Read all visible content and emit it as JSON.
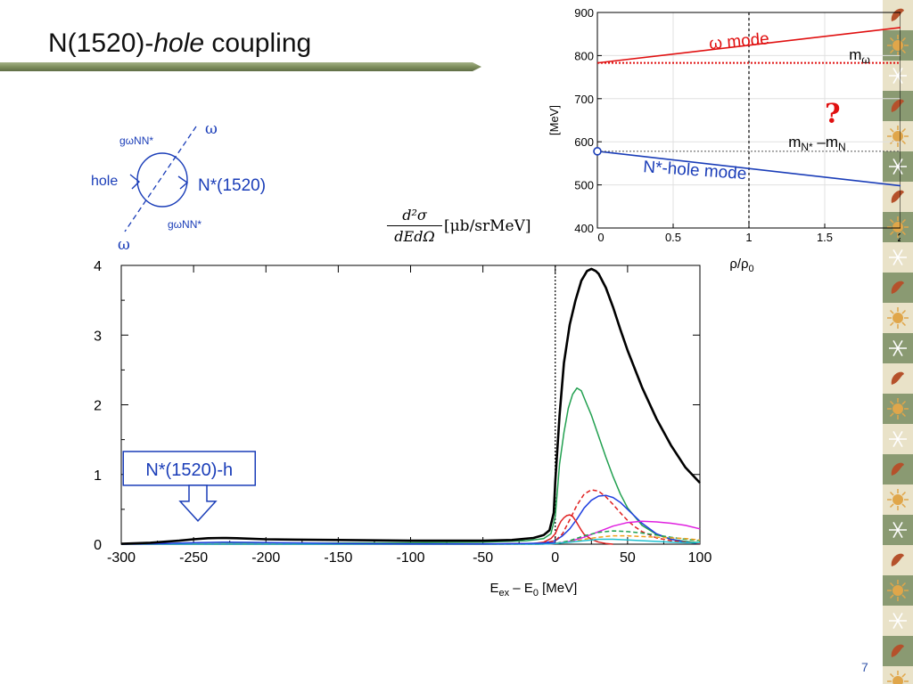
{
  "slide": {
    "title_prefix": "N(1520)-",
    "title_italic": "hole",
    "title_suffix": " coupling",
    "page_number": "7"
  },
  "colors": {
    "title_bar": "#7f8f5f",
    "title_bar_dark": "#5f6d45",
    "blue_label": "#1a3db8",
    "red_label": "#e01010",
    "sidebar_green": "#8a9a72",
    "sidebar_light": "#e9e2c8",
    "sidebar_red": "#b5512b",
    "sidebar_orange": "#e0a64a"
  },
  "feynman": {
    "label_omega_top": "ω",
    "label_omega_bottom": "ω",
    "label_coupling_top": "gωNN*",
    "label_coupling_bottom": "gωNN*",
    "label_hole": "hole",
    "label_nstar": "N*(1520)"
  },
  "formula": {
    "numerator": "d²σ",
    "denominator": "dEdΩ",
    "unit": "[μb/srMeV]"
  },
  "chart_data": [
    {
      "type": "line",
      "ylabel": "[MeV]",
      "xlabel": "ρ/ρ0",
      "xlim": [
        0,
        2
      ],
      "ylim": [
        400,
        900
      ],
      "x_ticks": [
        0,
        0.5,
        1,
        1.5,
        2
      ],
      "x_tick_labels": [
        "0",
        "0.5",
        "1",
        "1.5",
        "2"
      ],
      "y_ticks": [
        400,
        500,
        600,
        700,
        800,
        900
      ],
      "y_tick_labels": [
        "400",
        "500",
        "600",
        "700",
        "800",
        "900"
      ],
      "grid": true,
      "series": [
        {
          "name": "ω mode",
          "x": [
            0,
            2
          ],
          "y": [
            783,
            865
          ],
          "color": "#e01010",
          "style": "solid"
        },
        {
          "name": "mω",
          "x": [
            0,
            2
          ],
          "y": [
            783,
            783
          ],
          "color": "#e01010",
          "style": "dotted"
        },
        {
          "name": "N*-hole mode",
          "x": [
            0,
            2
          ],
          "y": [
            578,
            498
          ],
          "color": "#1a3db8",
          "style": "solid"
        },
        {
          "name": "mN* – mN",
          "x": [
            0,
            2
          ],
          "y": [
            578,
            578
          ],
          "color": "#555555",
          "style": "dotted"
        }
      ],
      "vline_x": 1,
      "marker": {
        "x": 0,
        "y": 578
      },
      "annotations": {
        "omega_mode": "ω mode",
        "m_omega_base": "m",
        "m_omega_sub": "ω",
        "question": "?",
        "mn_part1": "m",
        "mn_sub1": "N*",
        "mn_part2": " –m",
        "mn_sub2": "N",
        "nhole_mode": "N*-hole mode"
      },
      "xlabel_rho": "ρ/ρ",
      "xlabel_sub": "0"
    },
    {
      "type": "line",
      "xlabel": "Eex – E0 [MeV]",
      "xlabel_base": "E",
      "xlabel_sub1": "ex",
      "xlabel_mid": " – E",
      "xlabel_sub2": "0",
      "xlabel_unit": " [MeV]",
      "xlim": [
        -300,
        100
      ],
      "ylim": [
        0,
        4
      ],
      "x_ticks": [
        -300,
        -250,
        -200,
        -150,
        -100,
        -50,
        0,
        50,
        100
      ],
      "x_tick_labels": [
        "-300",
        "-250",
        "-200",
        "-150",
        "-100",
        "-50",
        "0",
        "50",
        "100"
      ],
      "y_ticks": [
        0,
        1,
        2,
        3,
        4
      ],
      "y_tick_labels": [
        "0",
        "1",
        "2",
        "3",
        "4"
      ],
      "grid": false,
      "vline_x": 0,
      "callout": "N*(1520)-h",
      "series": [
        {
          "color": "#000000",
          "width": 2.6,
          "dash": "",
          "x": [
            -300,
            -280,
            -260,
            -250,
            -240,
            -230,
            -220,
            -200,
            -180,
            -150,
            -100,
            -50,
            -30,
            -15,
            -8,
            -4,
            -1,
            0,
            3,
            6,
            10,
            14,
            18,
            22,
            25,
            28,
            30,
            35,
            40,
            45,
            50,
            60,
            70,
            80,
            90,
            100
          ],
          "y": [
            0.005,
            0.02,
            0.05,
            0.07,
            0.085,
            0.09,
            0.085,
            0.07,
            0.065,
            0.06,
            0.05,
            0.05,
            0.06,
            0.09,
            0.13,
            0.2,
            0.45,
            0.9,
            1.85,
            2.6,
            3.15,
            3.5,
            3.78,
            3.92,
            3.95,
            3.92,
            3.88,
            3.68,
            3.4,
            3.08,
            2.78,
            2.25,
            1.8,
            1.42,
            1.1,
            0.88
          ]
        },
        {
          "color": "#22a050",
          "width": 1.5,
          "dash": "",
          "x": [
            -300,
            -200,
            -100,
            -50,
            -20,
            -8,
            -3,
            0,
            3,
            6,
            9,
            12,
            15,
            18,
            21,
            25,
            30,
            35,
            40,
            45,
            50,
            60,
            70,
            80,
            90,
            100
          ],
          "y": [
            0,
            0.01,
            0.02,
            0.03,
            0.05,
            0.08,
            0.15,
            0.4,
            1.15,
            1.6,
            1.95,
            2.15,
            2.24,
            2.2,
            2.05,
            1.85,
            1.55,
            1.25,
            0.97,
            0.72,
            0.52,
            0.27,
            0.14,
            0.07,
            0.04,
            0.02
          ]
        },
        {
          "color": "#2040e0",
          "width": 1.5,
          "dash": "",
          "x": [
            -300,
            -50,
            -10,
            0,
            5,
            10,
            15,
            20,
            25,
            30,
            35,
            40,
            45,
            50,
            55,
            60,
            70,
            80,
            90,
            100
          ],
          "y": [
            0,
            0,
            0.01,
            0.05,
            0.12,
            0.22,
            0.36,
            0.52,
            0.63,
            0.69,
            0.7,
            0.67,
            0.6,
            0.5,
            0.4,
            0.3,
            0.15,
            0.07,
            0.03,
            0.01
          ]
        },
        {
          "color": "#e02020",
          "width": 1.5,
          "dash": "",
          "x": [
            -300,
            -50,
            -15,
            -8,
            -3,
            0,
            2,
            4,
            6,
            8,
            10,
            12,
            14,
            16,
            18,
            20,
            25,
            30,
            35,
            40
          ],
          "y": [
            0,
            0,
            0.01,
            0.03,
            0.08,
            0.15,
            0.25,
            0.33,
            0.38,
            0.41,
            0.42,
            0.4,
            0.34,
            0.27,
            0.2,
            0.14,
            0.07,
            0.03,
            0.01,
            0
          ]
        },
        {
          "color": "#e02020",
          "width": 1.5,
          "dash": "5,3",
          "x": [
            -300,
            -50,
            -10,
            0,
            5,
            10,
            15,
            20,
            25,
            30,
            35,
            40,
            45,
            50,
            55,
            60,
            70,
            80,
            90,
            100
          ],
          "y": [
            0,
            0,
            0.01,
            0.05,
            0.15,
            0.35,
            0.56,
            0.72,
            0.78,
            0.76,
            0.68,
            0.57,
            0.45,
            0.34,
            0.25,
            0.18,
            0.09,
            0.05,
            0.03,
            0.01
          ]
        },
        {
          "color": "#e020e0",
          "width": 1.5,
          "dash": "",
          "x": [
            -300,
            -10,
            0,
            10,
            20,
            30,
            40,
            50,
            60,
            70,
            80,
            90,
            100
          ],
          "y": [
            0,
            0,
            0.01,
            0.04,
            0.1,
            0.18,
            0.26,
            0.31,
            0.33,
            0.32,
            0.3,
            0.27,
            0.22
          ]
        },
        {
          "color": "#22a050",
          "width": 1.5,
          "dash": "5,3",
          "x": [
            -300,
            -10,
            0,
            10,
            20,
            30,
            40,
            50,
            60,
            70,
            80,
            90,
            100
          ],
          "y": [
            0,
            0,
            0.01,
            0.05,
            0.12,
            0.17,
            0.19,
            0.18,
            0.16,
            0.13,
            0.1,
            0.07,
            0.05
          ]
        },
        {
          "color": "#f0a020",
          "width": 1.5,
          "dash": "5,3",
          "x": [
            -300,
            -10,
            0,
            10,
            20,
            30,
            40,
            50,
            60,
            70,
            80,
            90,
            100
          ],
          "y": [
            0,
            0,
            0.01,
            0.03,
            0.07,
            0.1,
            0.12,
            0.12,
            0.11,
            0.1,
            0.09,
            0.08,
            0.06
          ]
        },
        {
          "color": "#20c0d0",
          "width": 1.5,
          "dash": "",
          "x": [
            -300,
            -10,
            0,
            10,
            20,
            30,
            40,
            50,
            60,
            70,
            80,
            90,
            100
          ],
          "y": [
            0,
            0,
            0.01,
            0.03,
            0.05,
            0.07,
            0.07,
            0.06,
            0.05,
            0.04,
            0.03,
            0.02,
            0.02
          ]
        },
        {
          "color": "#2040e0",
          "width": 1.5,
          "dash": "",
          "x": [
            -300,
            -270,
            -250,
            -230,
            -210,
            -190,
            -170,
            -150,
            -100,
            -50,
            -20,
            0
          ],
          "y": [
            0,
            0.01,
            0.02,
            0.03,
            0.025,
            0.02,
            0.015,
            0.01,
            0.005,
            0.005,
            0.01,
            0.02
          ]
        }
      ]
    }
  ]
}
